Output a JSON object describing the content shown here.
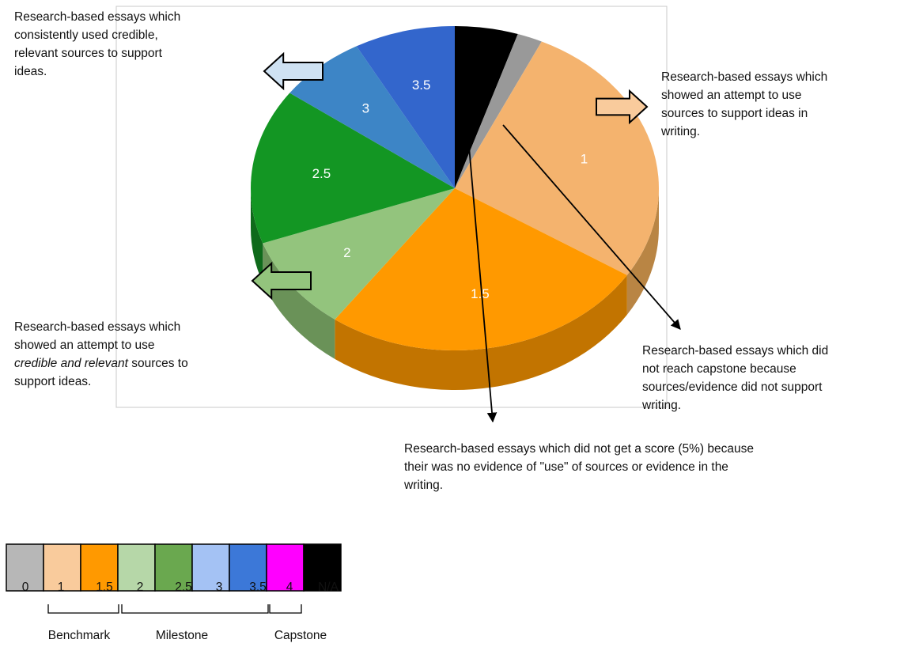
{
  "chart_data": {
    "type": "pie",
    "title": "",
    "slices": [
      {
        "label": "N/A",
        "value": 5.0,
        "color": "#000000",
        "side": "#000000",
        "show_label": false
      },
      {
        "label": "0",
        "value": 2.0,
        "color": "#999999",
        "side": "#6e6e6e",
        "show_label": false
      },
      {
        "label": "1",
        "value": 27.0,
        "color": "#f4b36e",
        "side": "#b98544",
        "show_label": true
      },
      {
        "label": "1.5",
        "value": 26.0,
        "color": "#ff9900",
        "side": "#c27400",
        "show_label": true
      },
      {
        "label": "2",
        "value": 9.5,
        "color": "#93c47d",
        "side": "#6a9258",
        "show_label": true
      },
      {
        "label": "2.5",
        "value": 15.5,
        "color": "#139623",
        "side": "#0f6a1b",
        "show_label": true
      },
      {
        "label": "3",
        "value": 7.0,
        "color": "#3d85c6",
        "side": "#2c5f8e",
        "show_label": true
      },
      {
        "label": "3.5",
        "value": 8.0,
        "color": "#3366cc",
        "side": "#244a94",
        "show_label": true
      }
    ]
  },
  "annotations": {
    "capstone_top_left": [
      "Research-based essays which",
      "consistently used credible,",
      "relevant sources to support",
      "ideas."
    ],
    "benchmark_right": [
      "Research-based essays which",
      "showed an attempt to use",
      "sources to support ideas in",
      "writing."
    ],
    "milestone_left": {
      "line1": "Research-based essays which",
      "line2": "showed an attempt to use",
      "line3_italic": "credible and relevant",
      "line3_rest": " sources to",
      "line4": "support ideas."
    },
    "not_capstone_right": [
      "Research-based essays which did",
      "not reach capstone because",
      "sources/evidence did not support",
      "writing."
    ],
    "no_score_bottom": [
      "Research-based essays which did not get a score (5%) because",
      "their was no evidence of \"use\" of sources or evidence in the",
      "writing."
    ]
  },
  "legend": {
    "swatches": [
      {
        "label": "0",
        "color": "#b7b7b7"
      },
      {
        "label": "1",
        "color": "#f9cb9c"
      },
      {
        "label": "1.5",
        "color": "#ff9900"
      },
      {
        "label": "2",
        "color": "#b6d7a8"
      },
      {
        "label": "2.5",
        "color": "#6aa84f"
      },
      {
        "label": "3",
        "color": "#a4c2f4"
      },
      {
        "label": "3.5",
        "color": "#3c78d8"
      },
      {
        "label": "4",
        "color": "#ff00ff"
      },
      {
        "label": "N/A",
        "color": "#000000"
      }
    ],
    "groups": [
      "Benchmark",
      "Milestone",
      "Capstone"
    ]
  },
  "arrows": {
    "capstone_fill": "#cfe2f3",
    "milestone_fill": "#93c47d",
    "benchmark_fill": "#f9cb9c"
  }
}
